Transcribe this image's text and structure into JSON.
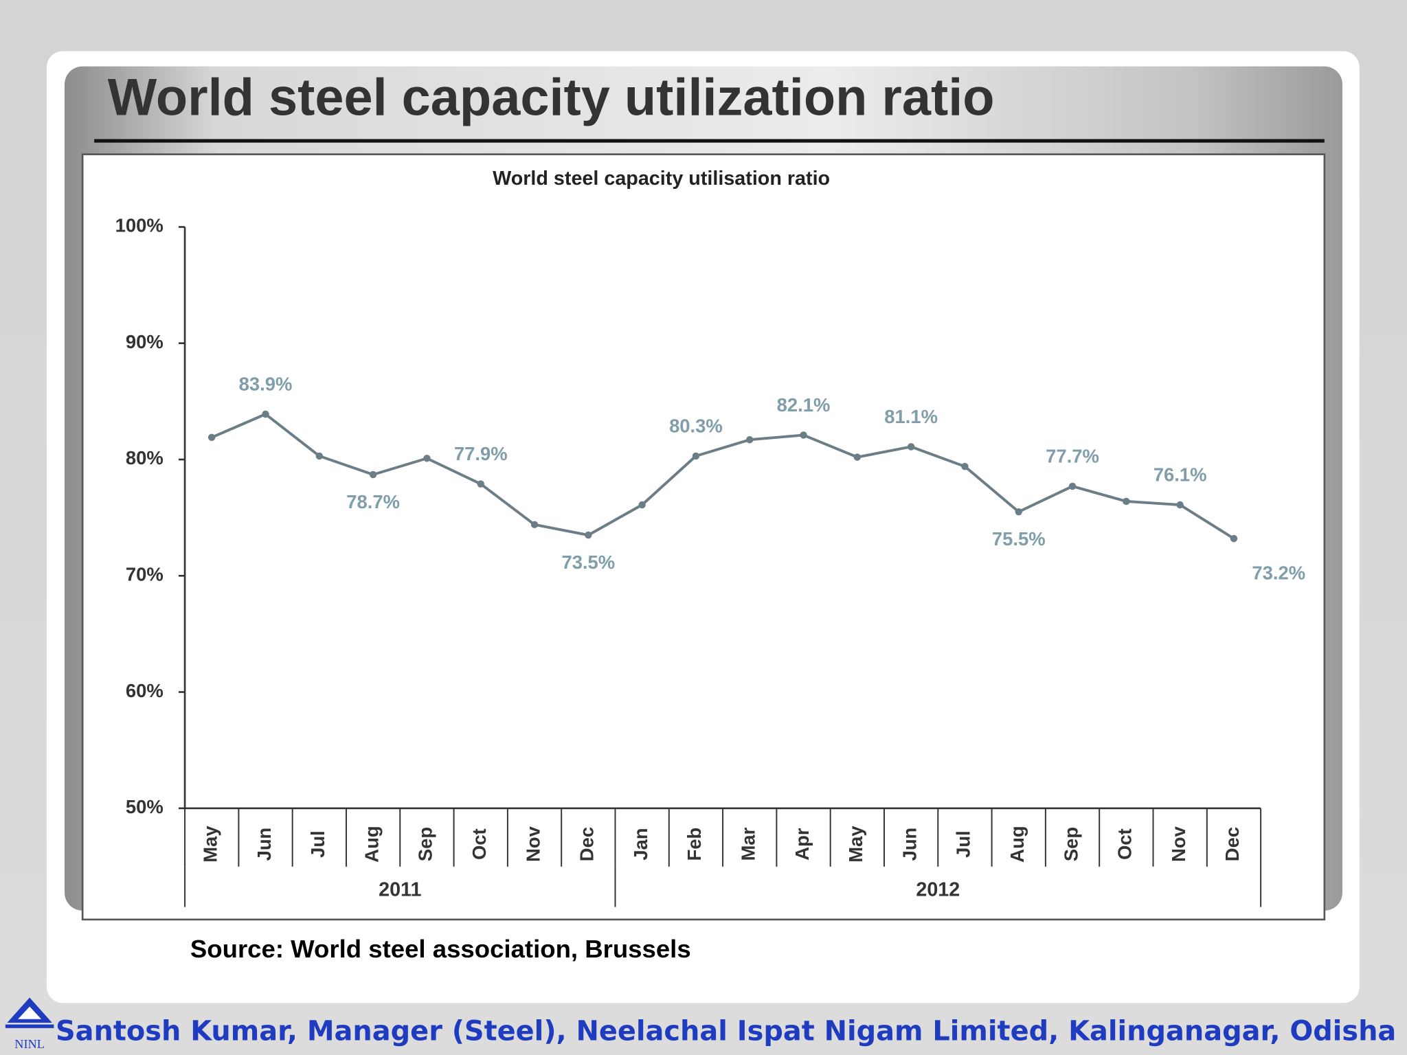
{
  "slide": {
    "title": "World steel capacity utilization ratio",
    "source": "Source: World steel association, Brussels",
    "footer": "Santosh Kumar, Manager (Steel), Neelachal Ispat Nigam Limited, Kalinganagar, Odisha",
    "logo_text": "NINL"
  },
  "chart_data": {
    "type": "line",
    "title": "World steel capacity utilisation ratio",
    "categories": [
      "May",
      "Jun",
      "Jul",
      "Aug",
      "Sep",
      "Oct",
      "Nov",
      "Dec",
      "Jan",
      "Feb",
      "Mar",
      "Apr",
      "May",
      "Jun",
      "Jul",
      "Aug",
      "Sep",
      "Oct",
      "Nov",
      "Dec"
    ],
    "category_groups": [
      {
        "label": "2011",
        "size": 8
      },
      {
        "label": "2012",
        "size": 12
      }
    ],
    "values": [
      81.9,
      83.9,
      80.3,
      78.7,
      80.1,
      77.9,
      74.4,
      73.5,
      76.1,
      80.3,
      81.7,
      82.1,
      80.2,
      81.1,
      79.4,
      75.5,
      77.7,
      76.4,
      76.1,
      73.2
    ],
    "value_labels": [
      null,
      "83.9%",
      null,
      "78.7%",
      null,
      "77.9%",
      null,
      "73.5%",
      null,
      "80.3%",
      null,
      "82.1%",
      null,
      "81.1%",
      null,
      "75.5%",
      "77.7%",
      null,
      "76.1%",
      "73.2%"
    ],
    "color": "#6b7d87",
    "label_color": "#7f9ea9",
    "ylim": [
      50,
      100
    ],
    "yticks": [
      {
        "value": 50,
        "label": "50%"
      },
      {
        "value": 60,
        "label": "60%"
      },
      {
        "value": 70,
        "label": "70%"
      },
      {
        "value": 80,
        "label": "80%"
      },
      {
        "value": 90,
        "label": "90%"
      },
      {
        "value": 100,
        "label": "100%"
      }
    ],
    "grid": false
  }
}
